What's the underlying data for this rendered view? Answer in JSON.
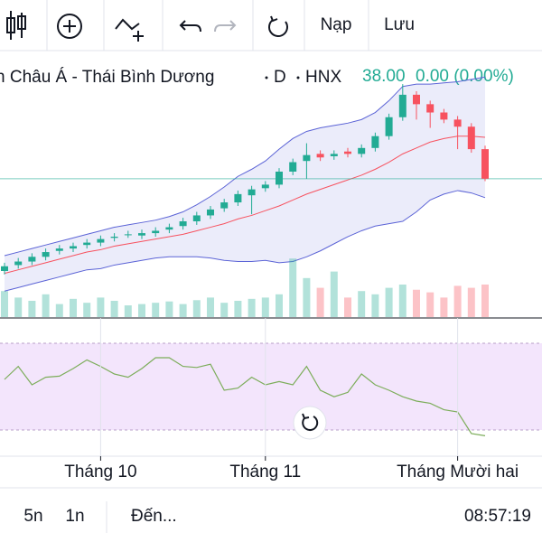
{
  "toolbar": {
    "buttons": [
      "Nạp",
      "Lưu"
    ]
  },
  "header": {
    "symbol_name": "n Châu Á - Thái Bình Dương",
    "interval": "D",
    "exchange": "HNX",
    "last": "38.00",
    "change": "0.00 (0.00%)"
  },
  "chart_data": {
    "type": "candlestick",
    "categories": [
      null,
      null,
      null,
      null,
      null,
      null,
      null,
      "Tháng 10",
      null,
      null,
      null,
      null,
      null,
      null,
      null,
      null,
      null,
      null,
      null,
      "Tháng 11",
      null,
      null,
      null,
      null,
      null,
      null,
      null,
      null,
      null,
      null,
      null,
      null,
      null,
      "Tháng Mười hai",
      null,
      null
    ],
    "open": [
      30.2,
      30.7,
      31.0,
      31.4,
      31.9,
      32.1,
      32.4,
      32.6,
      33.0,
      33.3,
      33.2,
      33.4,
      33.7,
      34.0,
      34.4,
      34.9,
      35.5,
      36.0,
      36.6,
      37.2,
      37.5,
      38.6,
      39.5,
      40.1,
      39.9,
      40.3,
      40.1,
      40.6,
      41.6,
      43.2,
      45.1,
      44.3,
      43.6,
      43.0,
      42.4,
      40.5
    ],
    "high": [
      30.9,
      31.3,
      31.7,
      32.1,
      32.4,
      32.6,
      32.9,
      33.2,
      33.4,
      33.6,
      33.7,
      33.9,
      34.2,
      34.7,
      35.2,
      35.7,
      36.3,
      37.0,
      37.4,
      37.8,
      38.9,
      39.7,
      41.0,
      40.4,
      40.4,
      40.6,
      40.9,
      41.9,
      43.5,
      46.0,
      45.4,
      44.6,
      43.9,
      43.3,
      42.7,
      40.8
    ],
    "low": [
      29.9,
      30.4,
      30.7,
      31.1,
      31.6,
      31.8,
      32.1,
      32.3,
      32.7,
      33.0,
      32.9,
      33.1,
      33.4,
      33.7,
      34.1,
      34.6,
      35.2,
      35.7,
      35.0,
      36.9,
      37.2,
      38.3,
      38.0,
      39.5,
      39.6,
      39.8,
      39.8,
      40.3,
      41.3,
      42.9,
      43.0,
      42.3,
      42.7,
      40.5,
      40.2,
      37.8
    ],
    "close": [
      30.6,
      31.0,
      31.4,
      31.8,
      32.1,
      32.3,
      32.6,
      32.9,
      33.1,
      33.3,
      33.4,
      33.6,
      33.9,
      34.4,
      34.9,
      35.4,
      36.0,
      36.7,
      37.1,
      37.5,
      38.6,
      39.4,
      40.0,
      39.8,
      40.1,
      40.1,
      40.6,
      41.6,
      43.2,
      45.1,
      44.3,
      43.6,
      43.0,
      42.4,
      40.5,
      38.0
    ],
    "up_color": "#22ab94",
    "down_color": "#f7525f",
    "ylim": [
      26,
      47
    ],
    "bands": {
      "color": "#5b63d6",
      "middle_color": "#f7525f",
      "upper": [
        31.5,
        31.8,
        32.1,
        32.4,
        32.7,
        33.0,
        33.3,
        33.6,
        33.9,
        34.1,
        34.3,
        34.5,
        34.8,
        35.2,
        35.8,
        36.5,
        37.3,
        38.2,
        38.8,
        39.5,
        40.5,
        41.4,
        42.0,
        42.3,
        42.5,
        42.7,
        43.0,
        43.6,
        44.6,
        45.8,
        46.0,
        46.0,
        46.1,
        46.2,
        46.4,
        46.6
      ],
      "middle": [
        30.0,
        30.3,
        30.6,
        30.9,
        31.2,
        31.5,
        31.8,
        32.0,
        32.3,
        32.5,
        32.7,
        32.9,
        33.1,
        33.3,
        33.6,
        33.9,
        34.2,
        34.6,
        34.9,
        35.3,
        35.7,
        36.2,
        36.7,
        37.1,
        37.5,
        37.9,
        38.3,
        38.8,
        39.4,
        40.1,
        40.6,
        41.1,
        41.4,
        41.6,
        41.6,
        41.5
      ],
      "lower": [
        28.5,
        28.8,
        29.1,
        29.4,
        29.7,
        30.0,
        30.3,
        30.4,
        30.7,
        30.9,
        31.1,
        31.3,
        31.4,
        31.4,
        31.4,
        31.3,
        31.1,
        31.0,
        31.0,
        31.1,
        30.9,
        31.0,
        31.4,
        31.9,
        32.5,
        33.1,
        33.6,
        34.0,
        34.2,
        34.4,
        35.2,
        36.2,
        36.7,
        37.0,
        36.8,
        36.4
      ]
    },
    "volume": {
      "ylim": [
        0,
        100
      ],
      "values": [
        40,
        30,
        25,
        35,
        20,
        28,
        22,
        30,
        25,
        18,
        20,
        22,
        24,
        20,
        26,
        30,
        22,
        25,
        28,
        30,
        35,
        90,
        60,
        45,
        70,
        30,
        40,
        35,
        45,
        50,
        42,
        38,
        30,
        48,
        45,
        50
      ]
    },
    "rsi": {
      "ylim": [
        0,
        100
      ],
      "color": "#7cad5a",
      "values": [
        60,
        72,
        55,
        62,
        63,
        70,
        78,
        72,
        65,
        62,
        70,
        80,
        80,
        72,
        71,
        74,
        50,
        52,
        62,
        55,
        58,
        55,
        72,
        50,
        44,
        48,
        65,
        55,
        50,
        44,
        40,
        38,
        32,
        30,
        10,
        8
      ]
    }
  },
  "footer": {
    "ranges": [
      "5n",
      "1n"
    ],
    "goto": "Đến...",
    "time": "08:57:19"
  }
}
